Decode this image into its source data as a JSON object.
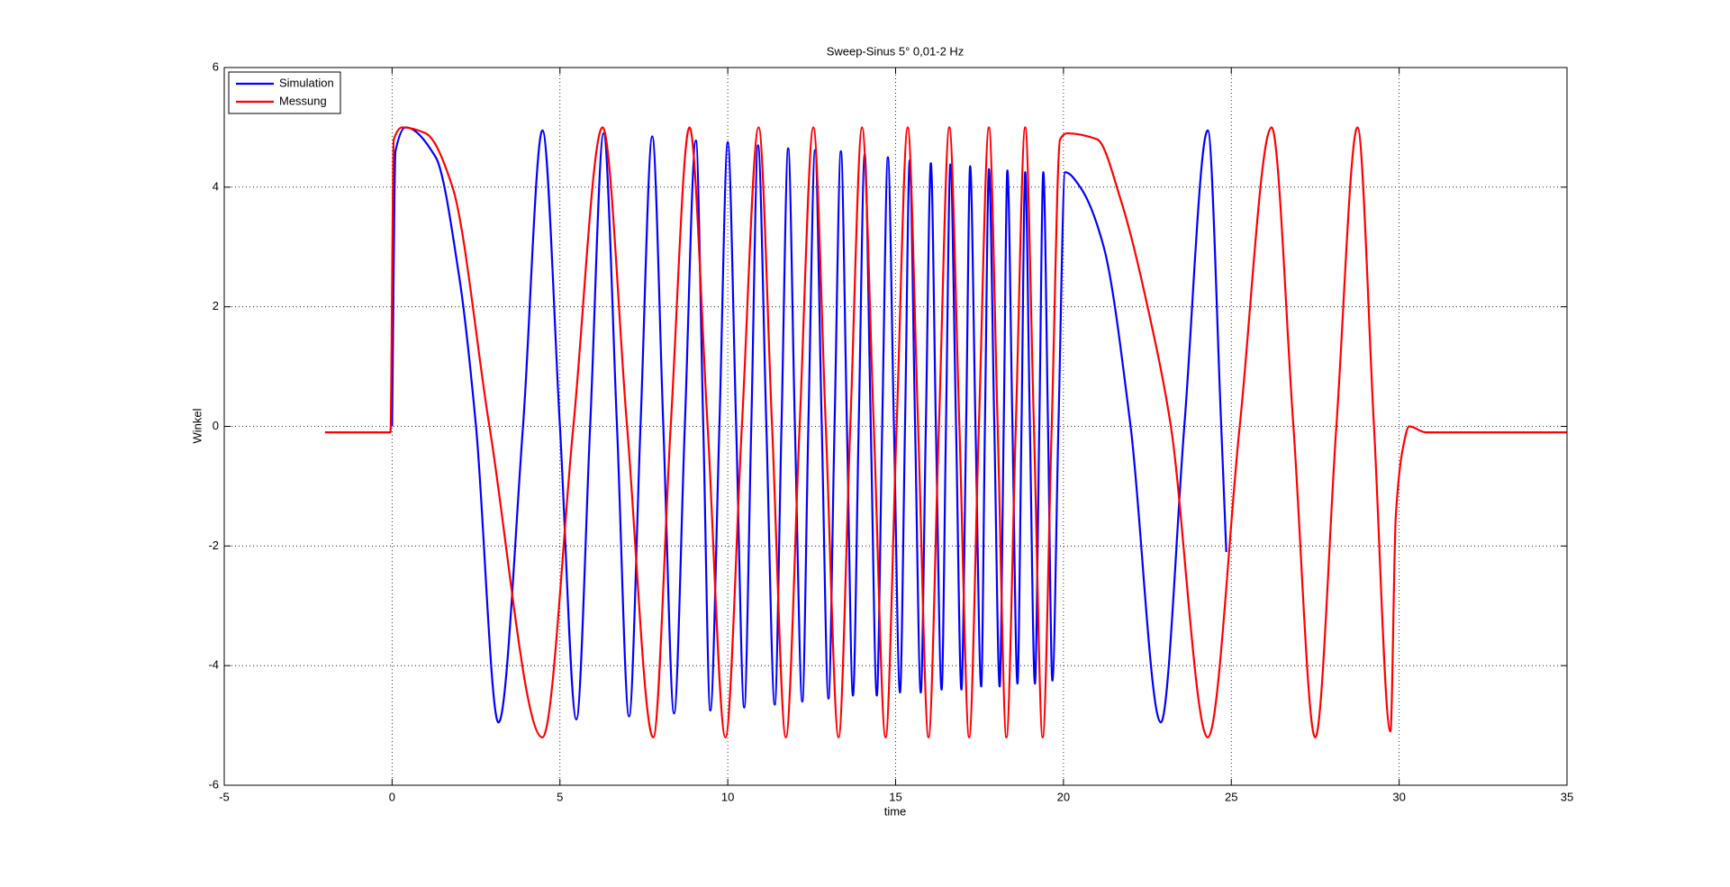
{
  "chart_data": {
    "type": "line",
    "title": "Sweep-Sinus 5° 0,01-2 Hz",
    "x_label": "time",
    "y_label": "Winkel",
    "xlim": [
      -5,
      35
    ],
    "xticks": [
      -5,
      0,
      5,
      10,
      15,
      20,
      25,
      30,
      35
    ],
    "ylim": [
      -6,
      6
    ],
    "yticks": [
      -6,
      -4,
      -2,
      0,
      2,
      4,
      6
    ],
    "grid": true,
    "legend": "upper left",
    "series": [
      {
        "name": "Simulation",
        "color": "#0000ff",
        "x": [
          0,
          0.1,
          0.4,
          1.3,
          2.0,
          2.5,
          3.17,
          3.9,
          4.48,
          5.0,
          5.49,
          5.9,
          6.3,
          6.7,
          7.06,
          7.4,
          7.75,
          8.08,
          8.4,
          8.72,
          9.05,
          9.27,
          9.48,
          9.75,
          10.0,
          10.25,
          10.49,
          10.7,
          10.9,
          11.15,
          11.4,
          11.6,
          11.8,
          12.0,
          12.22,
          12.4,
          12.6,
          12.8,
          13.0,
          13.18,
          13.37,
          13.55,
          13.73,
          13.9,
          14.08,
          14.26,
          14.44,
          14.6,
          14.77,
          14.95,
          15.13,
          15.28,
          15.42,
          15.58,
          15.75,
          15.9,
          16.05,
          16.2,
          16.37,
          16.5,
          16.63,
          16.8,
          16.96,
          17.1,
          17.22,
          17.38,
          17.55,
          17.66,
          17.78,
          17.94,
          18.1,
          18.22,
          18.33,
          18.48,
          18.63,
          18.75,
          18.86,
          19.0,
          19.15,
          19.28,
          19.4,
          19.54,
          19.67,
          19.85,
          20.05,
          20.5,
          21.2,
          22.0,
          22.9,
          23.6,
          24.3,
          24.7,
          24.85
        ],
        "values": [
          0,
          4.6,
          5.0,
          4.5,
          2.5,
          0,
          -4.95,
          0,
          4.95,
          0,
          -4.9,
          0,
          4.9,
          0,
          -4.85,
          0,
          4.85,
          0,
          -4.8,
          0,
          4.78,
          0,
          -4.75,
          0,
          4.75,
          0,
          -4.7,
          0,
          4.7,
          0,
          -4.65,
          0,
          4.65,
          0,
          -4.6,
          0,
          4.62,
          0,
          -4.55,
          0,
          4.6,
          0,
          -4.5,
          0,
          4.55,
          0,
          -4.5,
          0,
          4.5,
          0,
          -4.45,
          0,
          4.45,
          0,
          -4.45,
          0,
          4.4,
          0,
          -4.4,
          0,
          4.38,
          0,
          -4.4,
          0,
          4.35,
          0,
          -4.35,
          0,
          4.3,
          0,
          -4.35,
          0,
          4.28,
          0,
          -4.3,
          0,
          4.25,
          0,
          -4.3,
          0,
          4.25,
          0,
          -4.25,
          0,
          4.25,
          4.0,
          3.0,
          0,
          -4.95,
          0,
          4.95,
          0,
          -2.1
        ]
      },
      {
        "name": "Messung",
        "color": "#ff0000",
        "x": [
          -2,
          -0.05,
          0.05,
          0.3,
          1.0,
          1.8,
          2.9,
          4.48,
          5.4,
          6.27,
          7.0,
          7.78,
          8.3,
          8.86,
          9.4,
          9.93,
          10.42,
          10.92,
          11.32,
          11.73,
          12.14,
          12.55,
          12.92,
          13.3,
          13.65,
          14.0,
          14.35,
          14.7,
          15.03,
          15.36,
          15.67,
          15.98,
          16.29,
          16.6,
          16.9,
          17.19,
          17.48,
          17.78,
          18.04,
          18.3,
          18.58,
          18.86,
          19.12,
          19.38,
          19.65,
          19.9,
          20.1,
          21.0,
          21.7,
          22.7,
          23.2,
          24.3,
          25.25,
          26.2,
          26.85,
          27.5,
          28.13,
          28.76,
          29.25,
          29.74,
          29.9,
          30.1,
          30.3,
          30.8,
          35
        ],
        "values": [
          -0.1,
          -0.1,
          4.8,
          5.0,
          4.9,
          4.0,
          0,
          -5.2,
          0,
          5.0,
          0,
          -5.2,
          0,
          5.0,
          0,
          -5.2,
          0,
          5.0,
          0,
          -5.2,
          0,
          5.0,
          0,
          -5.2,
          0,
          5.0,
          0,
          -5.2,
          0,
          5.0,
          0,
          -5.2,
          0,
          5.0,
          0,
          -5.2,
          0,
          5.0,
          0,
          -5.2,
          0,
          5.0,
          0,
          -5.2,
          0,
          4.8,
          4.9,
          4.8,
          3.8,
          1.5,
          0,
          -5.2,
          0,
          5.0,
          0,
          -5.2,
          0,
          5.0,
          0,
          -5.1,
          -1.5,
          -0.4,
          0,
          -0.1,
          -0.1
        ]
      }
    ]
  }
}
